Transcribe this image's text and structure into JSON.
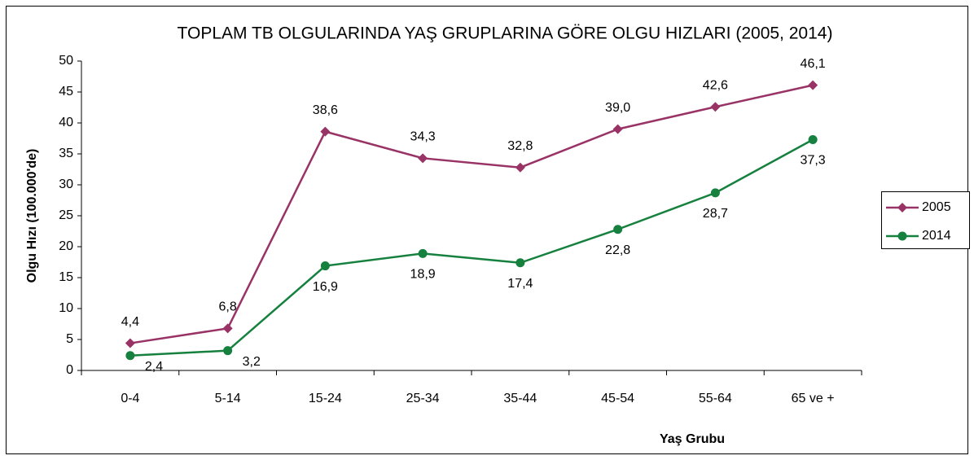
{
  "chart_data": {
    "type": "line",
    "title": "TOPLAM TB OLGULARINDA YAŞ GRUPLARINA GÖRE OLGU HIZLARI (2005, 2014)",
    "x_label": "Yaş Grubu",
    "y_label": "Olgu Hızı (100.000'de)",
    "categories": [
      "0-4",
      "5-14",
      "15-24",
      "25-34",
      "35-44",
      "45-54",
      "55-64",
      "65 ve +"
    ],
    "series": [
      {
        "name": "2005",
        "color": "#993366",
        "marker": "diamond",
        "values": [
          4.4,
          6.8,
          38.6,
          34.3,
          32.8,
          39.0,
          42.6,
          46.1
        ],
        "value_labels": [
          "4,4",
          "6,8",
          "38,6",
          "34,3",
          "32,8",
          "39,0",
          "42,6",
          "46,1"
        ]
      },
      {
        "name": "2014",
        "color": "#16813f",
        "marker": "circle",
        "values": [
          2.4,
          3.2,
          16.9,
          18.9,
          17.4,
          22.8,
          28.7,
          37.3
        ],
        "value_labels": [
          "2,4",
          "3,2",
          "16,9",
          "18,9",
          "17,4",
          "22,8",
          "28,7",
          "37,3"
        ]
      }
    ],
    "ylim": [
      0,
      50
    ],
    "yticks": [
      0,
      5,
      10,
      15,
      20,
      25,
      30,
      35,
      40,
      45,
      50
    ],
    "grid": false,
    "legend": "right"
  }
}
